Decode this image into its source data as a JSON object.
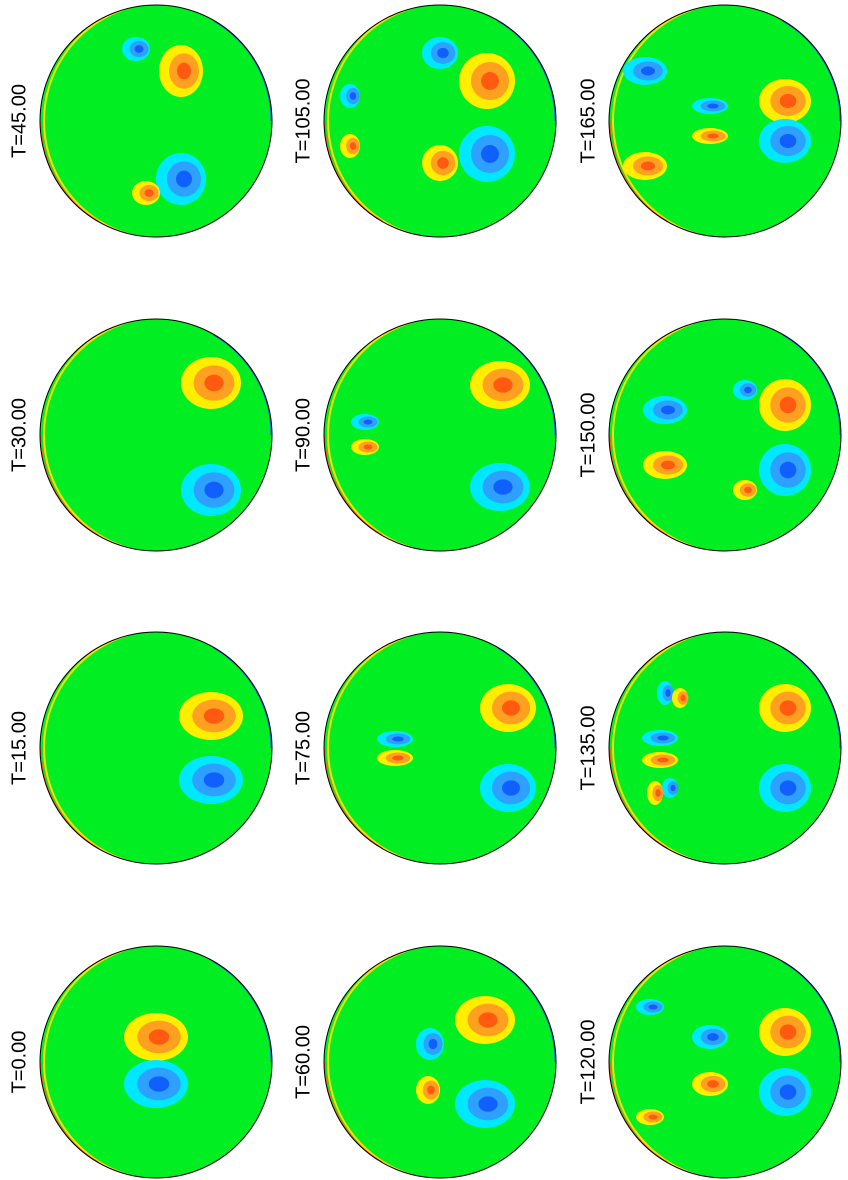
{
  "panels": [
    {
      "label": "T=0.00"
    },
    {
      "label": "T=15.00"
    },
    {
      "label": "T=30.00"
    },
    {
      "label": "T=45.00"
    },
    {
      "label": "T=60.00"
    },
    {
      "label": "T=75.00"
    },
    {
      "label": "T=90.00"
    },
    {
      "label": "T=105.00"
    },
    {
      "label": "T=120.00"
    },
    {
      "label": "T=135.00"
    },
    {
      "label": "T=150.00"
    },
    {
      "label": "T=165.00"
    }
  ]
}
